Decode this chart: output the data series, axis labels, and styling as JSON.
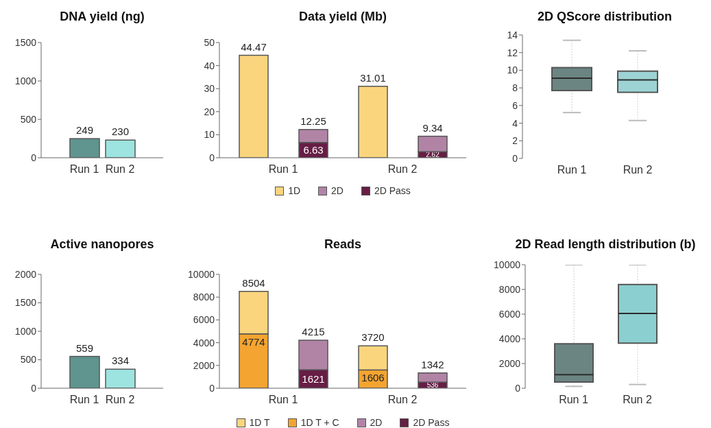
{
  "chart_data": [
    {
      "type": "bar",
      "title": "DNA yield (ng)",
      "categories": [
        "Run 1",
        "Run 2"
      ],
      "values": [
        249,
        230
      ],
      "colors": [
        "#5f948f",
        "#9de3df"
      ],
      "ylim": [
        0,
        1500
      ],
      "yticks": [
        0,
        500,
        1000,
        1500
      ],
      "data_labels": true
    },
    {
      "type": "bar",
      "title": "Data yield (Mb)",
      "categories": [
        "Run 1",
        null,
        "Run 2",
        null
      ],
      "stacked": true,
      "series": [
        {
          "name": "1D",
          "color": "#fbd57e",
          "values": [
            44.47,
            null,
            31.01,
            null
          ]
        },
        {
          "name": "2D Pass",
          "color": "#661e45",
          "values": [
            null,
            6.63,
            null,
            2.62
          ],
          "value_labels": [
            null,
            "6.63",
            null,
            "2.62"
          ]
        },
        {
          "name": "2D",
          "color": "#b184a6",
          "values": [
            null,
            5.62,
            null,
            6.72
          ]
        }
      ],
      "totals": [
        "44.47",
        "12.25",
        "31.01",
        "9.34"
      ],
      "ylim": [
        0,
        50
      ],
      "yticks": [
        0,
        10,
        20,
        30,
        40,
        50
      ],
      "legend": "bottom"
    },
    {
      "type": "box",
      "title": "2D QScore distribution",
      "categories": [
        "Run 1",
        "Run 2"
      ],
      "boxes": [
        {
          "low": 5.2,
          "q1": 7.7,
          "median": 9.1,
          "q3": 10.3,
          "high": 13.4
        },
        {
          "low": 4.3,
          "q1": 7.5,
          "median": 8.9,
          "q3": 9.9,
          "high": 12.2
        }
      ],
      "colors": [
        "#6b8582",
        "#9dd3d4"
      ],
      "ylim": [
        0,
        14
      ],
      "yticks": [
        0,
        2,
        4,
        6,
        8,
        10,
        12,
        14
      ]
    },
    {
      "type": "bar",
      "title": "Active nanopores",
      "categories": [
        "Run 1",
        "Run 2"
      ],
      "values": [
        559,
        334
      ],
      "colors": [
        "#5f948f",
        "#9de3df"
      ],
      "ylim": [
        0,
        2000
      ],
      "yticks": [
        0,
        500,
        1000,
        1500,
        2000
      ],
      "data_labels": true
    },
    {
      "type": "bar",
      "title": "Reads",
      "categories": [
        "Run 1",
        null,
        "Run 2",
        null
      ],
      "stacked": true,
      "series": [
        {
          "name": "1D T + C",
          "color": "#f4a430",
          "values": [
            4774,
            null,
            1606,
            null
          ],
          "value_labels": [
            "4774",
            null,
            "1606",
            null
          ]
        },
        {
          "name": "1D T",
          "color": "#fbd57e",
          "values": [
            3730,
            null,
            2114,
            null
          ]
        },
        {
          "name": "2D Pass",
          "color": "#661e45",
          "values": [
            null,
            1621,
            null,
            536
          ],
          "value_labels": [
            null,
            "1621",
            null,
            "536"
          ]
        },
        {
          "name": "2D",
          "color": "#b184a6",
          "values": [
            null,
            2594,
            null,
            806
          ]
        }
      ],
      "totals": [
        "8504",
        "4215",
        "3720",
        "1342"
      ],
      "ylim": [
        0,
        10000
      ],
      "yticks": [
        0,
        2000,
        4000,
        6000,
        8000,
        10000
      ],
      "legend": "bottom"
    },
    {
      "type": "box",
      "title": "2D Read length distribution (b)",
      "categories": [
        "Run 1",
        "Run 2"
      ],
      "boxes": [
        {
          "low": 150,
          "q1": 500,
          "median": 1100,
          "q3": 3600,
          "high": 10000
        },
        {
          "low": 300,
          "q1": 3650,
          "median": 6050,
          "q3": 8400,
          "high": 10000
        }
      ],
      "colors": [
        "#6b8582",
        "#8ccfd0"
      ],
      "ylim": [
        0,
        10000
      ],
      "yticks": [
        0,
        2000,
        4000,
        6000,
        8000,
        10000
      ]
    }
  ]
}
